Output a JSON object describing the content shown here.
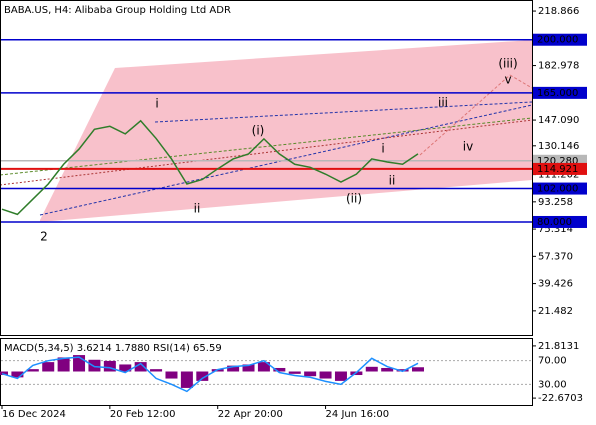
{
  "chart_data": [
    {
      "type": "line",
      "title": "BABA.US, H4:  Alibaba Group Holding Ltd ADR",
      "categories": [
        "16 Dec 2024",
        null,
        null,
        null,
        null,
        null,
        null,
        "20 Feb 12:00",
        null,
        null,
        null,
        null,
        null,
        null,
        "22 Apr 20:00",
        null,
        null,
        null,
        null,
        null,
        null,
        "24 Jun 16:00",
        null,
        null,
        null,
        null,
        null,
        null
      ],
      "series": [
        {
          "color": "#2f7d2a",
          "values": [
            88.4,
            85,
            95,
            105,
            118,
            128,
            141,
            143,
            138,
            146.6,
            135,
            121.5,
            105,
            108,
            115,
            121.5,
            124.8,
            134.7,
            124.8,
            118,
            116,
            111.5,
            106.3,
            111.5,
            121.5,
            119.5,
            118,
            124.8
          ]
        }
      ],
      "ylim": [
        5.58,
        225.49
      ],
      "yticks": [
        218.866,
        182.978,
        {
          "value": 147.09,
          "label": "147.090"
        },
        130.146,
        111.202,
        93.258,
        75.314,
        {
          "value": 57.37,
          "label": "57.370"
        },
        39.426,
        21.482
      ],
      "levels": [
        {
          "value": 200,
          "label": "200.000",
          "color": "#0000cc"
        },
        {
          "value": 165,
          "label": "165.000",
          "color": "#0000cc"
        },
        {
          "value": 120.28,
          "label": "120.280",
          "color": "#b8b8b8"
        },
        {
          "value": 114.921,
          "label": "114.921",
          "color": "#e01010"
        },
        {
          "value": 102,
          "label": "102.000",
          "color": "#0000cc"
        },
        {
          "value": 80,
          "label": "80.000",
          "color": "#0000cc"
        }
      ],
      "annotations": [
        "2",
        "i",
        "ii",
        "(i)",
        "(ii)",
        "(iii)",
        "i",
        "ii",
        "iii",
        "iv",
        "v"
      ]
    },
    {
      "type": "indicator",
      "title": "MACD(5,34,5) 3.6214 1.7880 RSI(14) 65.59",
      "series": [
        {
          "color": "#800080",
          "values": [
            -3,
            -5,
            2,
            8,
            12,
            14,
            10,
            9,
            6,
            8,
            2,
            -6,
            -14,
            -8,
            2,
            5,
            6,
            8,
            3,
            -2,
            -4,
            -6,
            -8,
            -3,
            4,
            3,
            2,
            3.6214
          ]
        },
        {
          "color": "#1e90ff",
          "axis": "y2",
          "values": [
            48,
            40,
            62,
            70,
            74,
            76,
            60,
            58,
            50,
            65,
            40,
            30,
            18,
            40,
            55,
            60,
            62,
            70,
            50,
            45,
            42,
            35,
            30,
            50,
            74,
            60,
            52,
            65.59
          ]
        }
      ],
      "ylim": [
        -28.55,
        27.7
      ],
      "yticks": [
        21.8131,
        -22.6703
      ],
      "y2lim": [
        -5,
        106.7
      ],
      "y2ticks": [
        {
          "value": 70,
          "label": "70.00"
        },
        {
          "value": 30,
          "label": "30.00"
        }
      ]
    }
  ]
}
